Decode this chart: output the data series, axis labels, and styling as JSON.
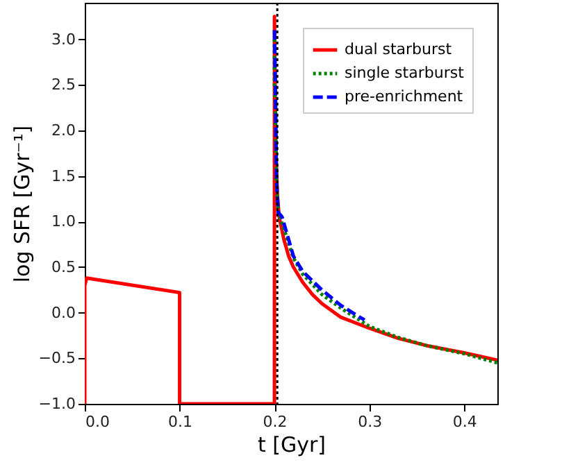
{
  "chart_data": {
    "type": "line",
    "xlabel": "t [Gyr]",
    "ylabel": "log SFR [Gyr⁻¹]",
    "xlim": [
      0,
      0.435
    ],
    "ylim": [
      -1,
      3.4
    ],
    "xticks": [
      {
        "value": 0,
        "label": "0.0"
      },
      0.1,
      0.2,
      0.3,
      0.4
    ],
    "yticks": [
      {
        "value": -1,
        "label": "−1.0"
      },
      {
        "value": -0.5,
        "label": "−0.5"
      },
      {
        "value": 0,
        "label": "0.0"
      },
      0.5,
      {
        "value": 1,
        "label": "1.0"
      },
      1.5,
      {
        "value": 2,
        "label": "2.0"
      },
      2.5,
      {
        "value": 3,
        "label": "3.0"
      }
    ],
    "grid": false,
    "legend": "top right",
    "ref_lines": [
      {
        "axis": "x",
        "value": 0.203,
        "color": "#000000",
        "line_style": "dotted"
      }
    ],
    "series": [
      {
        "name": "dual starburst",
        "color": "#ff0000",
        "line_style": "solid",
        "x": [
          0,
          0,
          0.002,
          0.1,
          0.1,
          0.2,
          0.2,
          0.201,
          0.203,
          0.205,
          0.21,
          0.215,
          0.22,
          0.23,
          0.24,
          0.25,
          0.27,
          0.3,
          0.33,
          0.36,
          0.4,
          0.435
        ],
        "values": [
          -1,
          0.3,
          0.38,
          0.22,
          -1,
          -1,
          3.25,
          2.0,
          1.3,
          1.05,
          0.8,
          0.62,
          0.5,
          0.33,
          0.2,
          0.1,
          -0.05,
          -0.17,
          -0.28,
          -0.36,
          -0.44,
          -0.52
        ]
      },
      {
        "name": "single starburst",
        "color": "#008000",
        "line_style": "dotted",
        "x": [
          0.2,
          0.2,
          0.201,
          0.202,
          0.204,
          0.21,
          0.22,
          0.23,
          0.25,
          0.27,
          0.3,
          0.33,
          0.36,
          0.4,
          0.435
        ],
        "values": [
          3.0,
          2.5,
          2.2,
          1.4,
          1.1,
          0.92,
          0.6,
          0.42,
          0.2,
          0.05,
          -0.15,
          -0.27,
          -0.36,
          -0.45,
          -0.55
        ]
      },
      {
        "name": "pre-enrichment",
        "color": "#0000ff",
        "line_style": "dashed",
        "x": [
          0.2,
          0.201,
          0.202,
          0.204,
          0.208,
          0.215,
          0.22,
          0.23,
          0.25,
          0.27,
          0.29,
          0.295
        ],
        "values": [
          3.1,
          2.5,
          1.5,
          1.1,
          1.05,
          0.8,
          0.62,
          0.45,
          0.25,
          0.08,
          -0.05,
          -0.08
        ]
      }
    ]
  }
}
